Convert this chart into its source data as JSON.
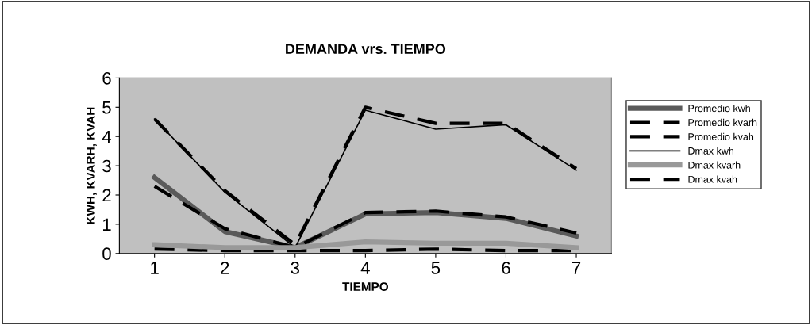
{
  "chart_data": {
    "type": "line",
    "title": "DEMANDA vrs. TIEMPO",
    "xlabel": "TIEMPO",
    "ylabel": "KWH, KVARH, KVAH",
    "categories": [
      "1",
      "2",
      "3",
      "4",
      "5",
      "6",
      "7"
    ],
    "series": [
      {
        "name": "Promedio kwh",
        "color": "#5a5a5a",
        "line_style": "solid",
        "values": [
          2.6,
          0.75,
          0.2,
          1.35,
          1.4,
          1.2,
          0.6
        ]
      },
      {
        "name": "Promedio kvarh",
        "color": "#000000",
        "line_style": "dashed",
        "values": [
          0.15,
          0.1,
          0.1,
          0.1,
          0.15,
          0.1,
          0.1
        ]
      },
      {
        "name": "Promedio kvah",
        "color": "#000000",
        "line_style": "dashed",
        "values": [
          2.3,
          0.85,
          0.2,
          1.4,
          1.45,
          1.25,
          0.7
        ]
      },
      {
        "name": "Dmax kwh",
        "color": "#000000",
        "line_style": "solid",
        "values": [
          4.6,
          2.1,
          0.2,
          4.9,
          4.25,
          4.4,
          2.85
        ]
      },
      {
        "name": "Dmax kvarh",
        "color": "#999999",
        "line_style": "solid",
        "values": [
          0.3,
          0.2,
          0.2,
          0.4,
          0.35,
          0.35,
          0.2
        ]
      },
      {
        "name": "Dmax kvah",
        "color": "#000000",
        "line_style": "dashed",
        "values": [
          4.6,
          2.15,
          0.3,
          5.0,
          4.45,
          4.45,
          2.9
        ]
      }
    ],
    "ylim": [
      0,
      6
    ],
    "yticks": [
      0,
      1,
      2,
      3,
      4,
      5,
      6
    ],
    "grid": false,
    "legend": "right",
    "marker": "none"
  }
}
